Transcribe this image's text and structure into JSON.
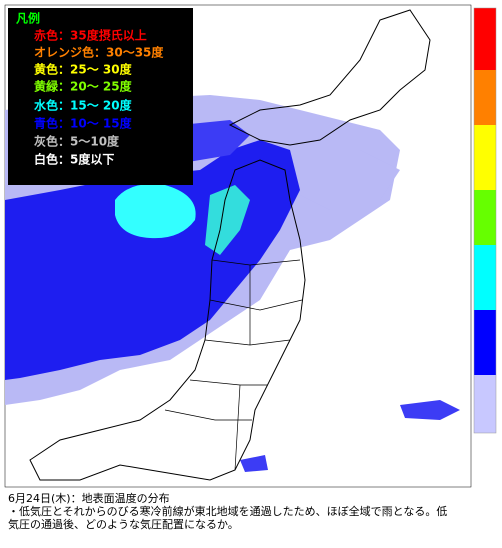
{
  "legend": {
    "title": "凡例",
    "title_color": "#00ff00",
    "items": [
      {
        "label": "赤色：35度摂氏以上",
        "color": "#ff0000"
      },
      {
        "label": "オレンジ色：30～35度",
        "color": "#ff8000"
      },
      {
        "label": "黄色：25～ 30度",
        "color": "#ffff00"
      },
      {
        "label": "黄緑：20～ 25度",
        "color": "#80ff00"
      },
      {
        "label": "水色：15～ 20度",
        "color": "#00ffff"
      },
      {
        "label": "青色：10～ 15度",
        "color": "#0000ff"
      },
      {
        "label": "灰色：5～10度",
        "color": "#c0c0c0"
      },
      {
        "label": "白色：5度以下",
        "color": "#ffffff"
      }
    ]
  },
  "caption": {
    "lines": [
      "6月24日(木)：地表面温度の分布",
      "・低気圧とそれからのびる寒冷前線が東北地域を通過したため、ほぼ全域で雨となる。低",
      "気圧の通過後、どのような気圧配置になるか。"
    ]
  }
}
